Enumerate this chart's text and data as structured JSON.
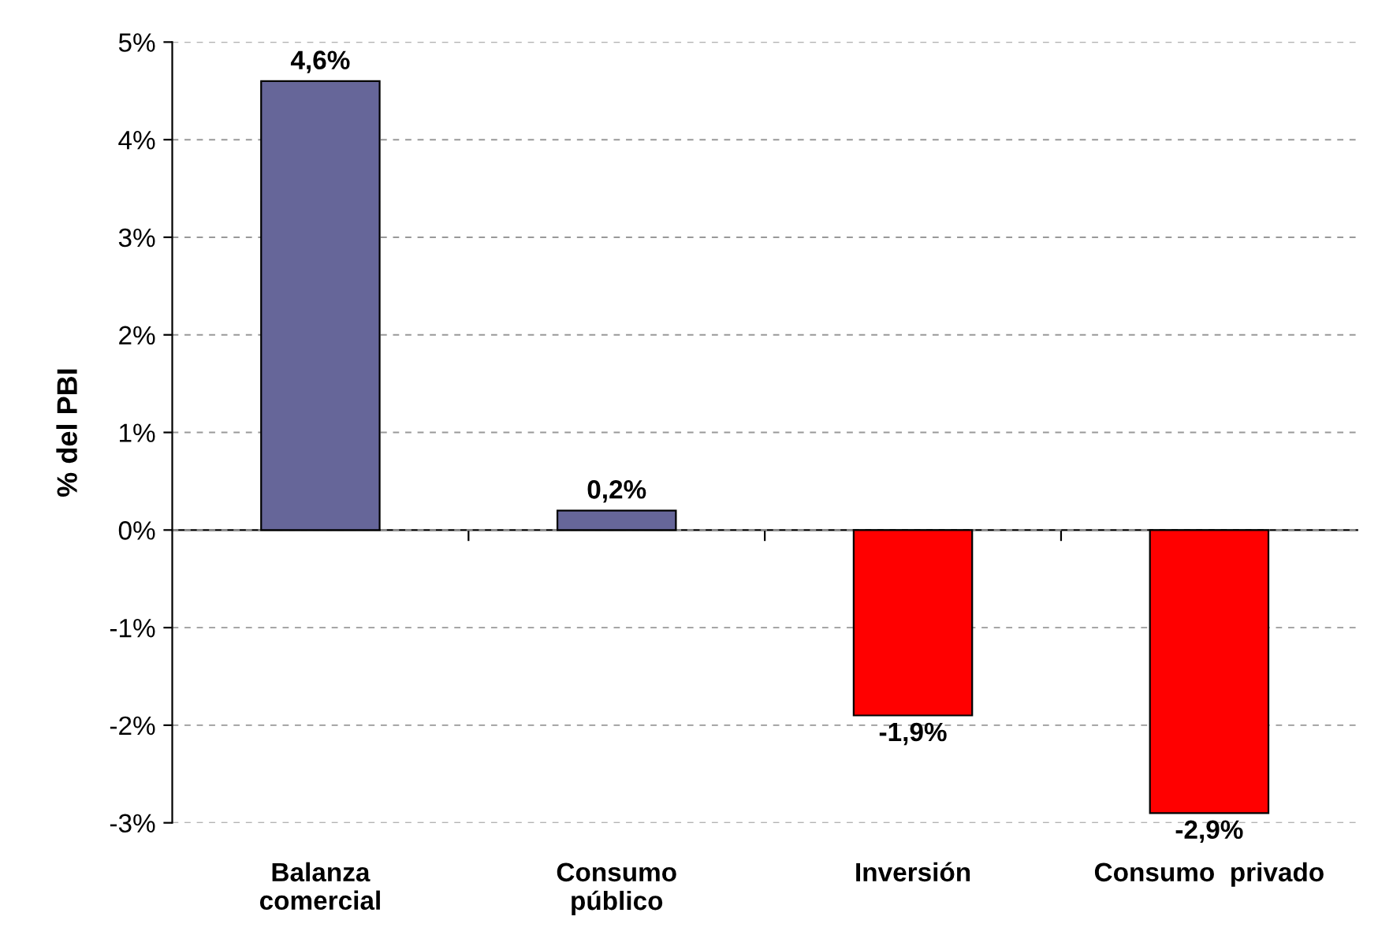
{
  "chart_data": {
    "type": "bar",
    "ylabel": "% del PBI",
    "categories": [
      "Balanza\ncomercial",
      "Consumo\npúblico",
      "Inversión",
      "Consumo  privado"
    ],
    "values": [
      4.6,
      0.2,
      -1.9,
      -2.9
    ],
    "colors": [
      "#666699",
      "#666699",
      "#ff0000",
      "#ff0000"
    ],
    "value_labels": [
      "4,6%",
      "0,2%",
      "-1,9%",
      "-2,9%"
    ],
    "ylim": [
      -3,
      5
    ],
    "yticks": [
      {
        "value": -3,
        "label": "-3%"
      },
      {
        "value": -2,
        "label": "-2%"
      },
      {
        "value": -1,
        "label": "-1%"
      },
      {
        "value": 0,
        "label": "0%"
      },
      {
        "value": 1,
        "label": "1%"
      },
      {
        "value": 2,
        "label": "2%"
      },
      {
        "value": 3,
        "label": "3%"
      },
      {
        "value": 4,
        "label": "4%"
      },
      {
        "value": 5,
        "label": "5%"
      }
    ],
    "grid": "y"
  }
}
